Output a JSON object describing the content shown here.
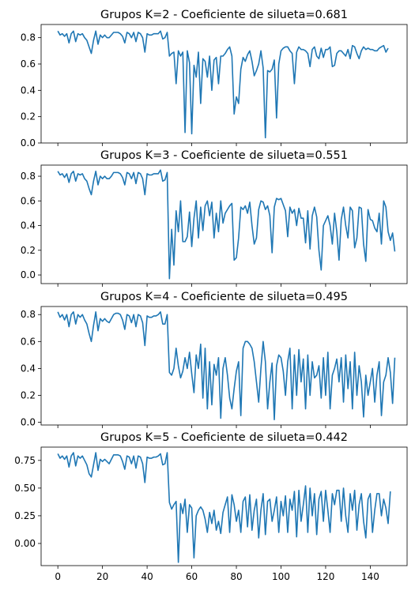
{
  "chart_data": [
    {
      "type": "line",
      "title": "Grupos K=2 - Coeficiente de silueta=0.681",
      "xlim": [
        -7.5,
        156.5
      ],
      "ylim": [
        0.0,
        0.9
      ],
      "yticks": [
        "0.0",
        "0.2",
        "0.4",
        "0.6",
        "0.8"
      ],
      "yticks_values": [
        0.0,
        0.2,
        0.4,
        0.6,
        0.8
      ],
      "xticks_values": [
        0,
        20,
        40,
        60,
        80,
        100,
        120,
        140
      ],
      "xticks": [],
      "series_color": "#1f77b4",
      "x_start": 0,
      "values": [
        0.85,
        0.82,
        0.83,
        0.81,
        0.83,
        0.76,
        0.83,
        0.85,
        0.77,
        0.83,
        0.82,
        0.83,
        0.8,
        0.78,
        0.73,
        0.68,
        0.78,
        0.85,
        0.75,
        0.82,
        0.8,
        0.82,
        0.8,
        0.8,
        0.82,
        0.84,
        0.84,
        0.84,
        0.83,
        0.81,
        0.76,
        0.84,
        0.83,
        0.8,
        0.84,
        0.77,
        0.84,
        0.83,
        0.8,
        0.69,
        0.83,
        0.82,
        0.82,
        0.83,
        0.83,
        0.83,
        0.85,
        0.79,
        0.8,
        0.84,
        0.66,
        0.68,
        0.69,
        0.45,
        0.7,
        0.66,
        0.69,
        0.08,
        0.7,
        0.61,
        0.07,
        0.59,
        0.5,
        0.69,
        0.3,
        0.64,
        0.62,
        0.5,
        0.66,
        0.4,
        0.63,
        0.65,
        0.45,
        0.66,
        0.66,
        0.68,
        0.71,
        0.73,
        0.66,
        0.22,
        0.35,
        0.3,
        0.56,
        0.65,
        0.62,
        0.67,
        0.7,
        0.62,
        0.51,
        0.55,
        0.6,
        0.7,
        0.57,
        0.04,
        0.55,
        0.54,
        0.56,
        0.63,
        0.19,
        0.6,
        0.7,
        0.72,
        0.73,
        0.73,
        0.7,
        0.68,
        0.45,
        0.69,
        0.73,
        0.71,
        0.71,
        0.7,
        0.68,
        0.58,
        0.71,
        0.73,
        0.66,
        0.64,
        0.72,
        0.65,
        0.71,
        0.71,
        0.73,
        0.58,
        0.59,
        0.68,
        0.7,
        0.7,
        0.68,
        0.66,
        0.71,
        0.64,
        0.74,
        0.73,
        0.68,
        0.64,
        0.7,
        0.73,
        0.71,
        0.72,
        0.71,
        0.71,
        0.7,
        0.7,
        0.72,
        0.73,
        0.74,
        0.69,
        0.72
      ]
    },
    {
      "type": "line",
      "title": "Grupos K=3 - Coeficiente de silueta=0.551",
      "xlim": [
        -7.5,
        156.5
      ],
      "ylim": [
        -0.07,
        0.89
      ],
      "yticks": [
        "0.0",
        "0.2",
        "0.4",
        "0.6",
        "0.8"
      ],
      "yticks_values": [
        0.0,
        0.2,
        0.4,
        0.6,
        0.8
      ],
      "xticks_values": [
        0,
        20,
        40,
        60,
        80,
        100,
        120,
        140
      ],
      "xticks": [],
      "series_color": "#1f77b4",
      "x_start": 0,
      "values": [
        0.84,
        0.81,
        0.82,
        0.79,
        0.82,
        0.75,
        0.82,
        0.84,
        0.76,
        0.82,
        0.81,
        0.82,
        0.78,
        0.76,
        0.7,
        0.65,
        0.76,
        0.84,
        0.73,
        0.8,
        0.78,
        0.8,
        0.78,
        0.78,
        0.8,
        0.83,
        0.83,
        0.83,
        0.82,
        0.79,
        0.73,
        0.83,
        0.82,
        0.78,
        0.83,
        0.74,
        0.83,
        0.82,
        0.78,
        0.65,
        0.82,
        0.81,
        0.81,
        0.82,
        0.82,
        0.82,
        0.85,
        0.76,
        0.77,
        0.83,
        -0.03,
        0.37,
        0.08,
        0.52,
        0.35,
        0.6,
        0.27,
        0.27,
        0.31,
        0.51,
        0.23,
        0.46,
        0.6,
        0.3,
        0.55,
        0.36,
        0.56,
        0.6,
        0.48,
        0.59,
        0.3,
        0.5,
        0.35,
        0.6,
        0.42,
        0.5,
        0.53,
        0.56,
        0.58,
        0.12,
        0.14,
        0.3,
        0.55,
        0.53,
        0.56,
        0.5,
        0.59,
        0.4,
        0.25,
        0.3,
        0.53,
        0.6,
        0.59,
        0.53,
        0.56,
        0.48,
        0.18,
        0.55,
        0.62,
        0.61,
        0.62,
        0.57,
        0.52,
        0.31,
        0.55,
        0.5,
        0.53,
        0.4,
        0.54,
        0.46,
        0.46,
        0.26,
        0.52,
        0.21,
        0.48,
        0.55,
        0.47,
        0.2,
        0.04,
        0.4,
        0.44,
        0.48,
        0.4,
        0.25,
        0.5,
        0.35,
        0.12,
        0.45,
        0.55,
        0.4,
        0.3,
        0.55,
        0.52,
        0.22,
        0.3,
        0.55,
        0.54,
        0.25,
        0.11,
        0.53,
        0.45,
        0.44,
        0.38,
        0.35,
        0.5,
        0.25,
        0.6,
        0.55,
        0.35,
        0.28,
        0.34,
        0.19
      ]
    },
    {
      "type": "line",
      "title": "Grupos K=4 - Coeficiente de silueta=0.495",
      "xlim": [
        -7.5,
        156.5
      ],
      "ylim": [
        -0.02,
        0.86
      ],
      "yticks": [
        "0.0",
        "0.2",
        "0.4",
        "0.6",
        "0.8"
      ],
      "yticks_values": [
        0.0,
        0.2,
        0.4,
        0.6,
        0.8
      ],
      "xticks_values": [
        0,
        20,
        40,
        60,
        80,
        100,
        120,
        140
      ],
      "xticks": [],
      "series_color": "#1f77b4",
      "x_start": 0,
      "values": [
        0.82,
        0.78,
        0.8,
        0.76,
        0.8,
        0.71,
        0.8,
        0.82,
        0.73,
        0.8,
        0.78,
        0.8,
        0.76,
        0.73,
        0.66,
        0.6,
        0.72,
        0.82,
        0.68,
        0.77,
        0.75,
        0.77,
        0.75,
        0.74,
        0.77,
        0.8,
        0.81,
        0.81,
        0.8,
        0.76,
        0.69,
        0.8,
        0.79,
        0.74,
        0.8,
        0.71,
        0.8,
        0.79,
        0.74,
        0.57,
        0.79,
        0.78,
        0.78,
        0.79,
        0.79,
        0.8,
        0.82,
        0.73,
        0.73,
        0.8,
        0.37,
        0.35,
        0.4,
        0.55,
        0.42,
        0.33,
        0.38,
        0.48,
        0.4,
        0.52,
        0.36,
        0.22,
        0.5,
        0.4,
        0.58,
        0.18,
        0.55,
        0.1,
        0.45,
        0.13,
        0.43,
        0.35,
        0.48,
        0.03,
        0.4,
        0.48,
        0.35,
        0.18,
        0.1,
        0.25,
        0.38,
        0.45,
        0.05,
        0.55,
        0.6,
        0.6,
        0.58,
        0.55,
        0.45,
        0.3,
        0.15,
        0.4,
        0.6,
        0.45,
        0.1,
        0.3,
        0.44,
        0.02,
        0.42,
        0.5,
        0.48,
        0.38,
        0.2,
        0.45,
        0.55,
        0.1,
        0.5,
        0.2,
        0.54,
        0.3,
        0.47,
        0.1,
        0.5,
        0.2,
        0.45,
        0.33,
        0.35,
        0.42,
        0.18,
        0.48,
        0.2,
        0.52,
        0.1,
        0.35,
        0.4,
        0.47,
        0.3,
        0.48,
        0.15,
        0.5,
        0.25,
        0.45,
        0.1,
        0.52,
        0.2,
        0.42,
        0.3,
        0.04,
        0.35,
        0.2,
        0.3,
        0.4,
        0.15,
        0.35,
        0.45,
        0.05,
        0.3,
        0.35,
        0.48,
        0.37,
        0.14,
        0.48
      ]
    },
    {
      "type": "line",
      "title": "Grupos K=5 - Coeficiente de silueta=0.442",
      "xlim": [
        -7.5,
        156.5
      ],
      "ylim": [
        -0.2,
        0.87
      ],
      "yticks": [
        "0.00",
        "0.25",
        "0.50",
        "0.75"
      ],
      "yticks_values": [
        0.0,
        0.25,
        0.5,
        0.75
      ],
      "xticks_values": [
        0,
        20,
        40,
        60,
        80,
        100,
        120,
        140
      ],
      "xticks": [
        "0",
        "20",
        "40",
        "60",
        "80",
        "100",
        "120",
        "140"
      ],
      "series_color": "#1f77b4",
      "x_start": 0,
      "values": [
        0.81,
        0.77,
        0.79,
        0.76,
        0.79,
        0.69,
        0.79,
        0.82,
        0.7,
        0.79,
        0.77,
        0.79,
        0.75,
        0.71,
        0.63,
        0.6,
        0.71,
        0.82,
        0.66,
        0.76,
        0.74,
        0.76,
        0.74,
        0.72,
        0.76,
        0.8,
        0.8,
        0.8,
        0.79,
        0.74,
        0.67,
        0.79,
        0.78,
        0.72,
        0.79,
        0.68,
        0.79,
        0.78,
        0.72,
        0.55,
        0.78,
        0.77,
        0.77,
        0.78,
        0.78,
        0.79,
        0.81,
        0.71,
        0.72,
        0.82,
        0.37,
        0.31,
        0.35,
        0.38,
        -0.17,
        0.36,
        0.27,
        0.4,
        0.1,
        0.35,
        0.32,
        -0.13,
        0.25,
        0.3,
        0.33,
        0.3,
        0.22,
        0.1,
        0.28,
        0.18,
        0.3,
        0.12,
        0.2,
        0.09,
        0.28,
        0.35,
        0.42,
        0.1,
        0.44,
        0.35,
        0.2,
        0.3,
        0.1,
        0.38,
        0.42,
        0.15,
        0.44,
        0.12,
        0.3,
        0.4,
        0.05,
        0.3,
        0.45,
        0.08,
        0.38,
        0.4,
        0.2,
        0.3,
        0.42,
        0.1,
        0.38,
        0.25,
        0.43,
        0.1,
        0.4,
        0.3,
        0.47,
        0.06,
        0.48,
        0.2,
        0.35,
        0.52,
        0.1,
        0.5,
        0.25,
        0.45,
        0.08,
        0.4,
        0.47,
        0.2,
        0.48,
        0.3,
        0.1,
        0.45,
        0.35,
        0.48,
        0.48,
        0.2,
        0.5,
        0.25,
        0.1,
        0.45,
        0.3,
        0.48,
        0.12,
        0.35,
        0.45,
        0.2,
        0.05,
        0.4,
        0.45,
        0.1,
        0.3,
        0.45,
        0.45,
        0.25,
        0.4,
        0.32,
        0.18,
        0.47
      ]
    }
  ]
}
